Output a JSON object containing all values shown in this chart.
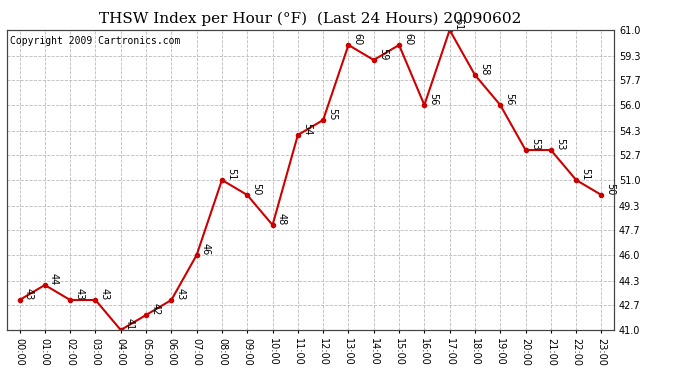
{
  "title": "THSW Index per Hour (°F)  (Last 24 Hours) 20090602",
  "copyright": "Copyright 2009 Cartronics.com",
  "hours": [
    "00:00",
    "01:00",
    "02:00",
    "03:00",
    "04:00",
    "05:00",
    "06:00",
    "07:00",
    "08:00",
    "09:00",
    "10:00",
    "11:00",
    "12:00",
    "13:00",
    "14:00",
    "15:00",
    "16:00",
    "17:00",
    "18:00",
    "19:00",
    "20:00",
    "21:00",
    "22:00",
    "23:00"
  ],
  "values": [
    43,
    44,
    43,
    43,
    41,
    42,
    43,
    46,
    51,
    50,
    48,
    54,
    55,
    60,
    59,
    60,
    56,
    61,
    58,
    56,
    53,
    53,
    51,
    50
  ],
  "line_color": "#cc0000",
  "marker_color": "#cc0000",
  "bg_color": "#ffffff",
  "grid_color": "#bbbbbb",
  "ylim_min": 41.0,
  "ylim_max": 61.0,
  "yticks": [
    41.0,
    42.7,
    44.3,
    46.0,
    47.7,
    49.3,
    51.0,
    52.7,
    54.3,
    56.0,
    57.7,
    59.3,
    61.0
  ],
  "ytick_labels": [
    "41.0",
    "42.7",
    "44.3",
    "46.0",
    "47.7",
    "49.3",
    "51.0",
    "52.7",
    "54.3",
    "56.0",
    "57.7",
    "59.3",
    "61.0"
  ],
  "title_fontsize": 11,
  "copyright_fontsize": 7,
  "label_fontsize": 7,
  "annot_fontsize": 7
}
